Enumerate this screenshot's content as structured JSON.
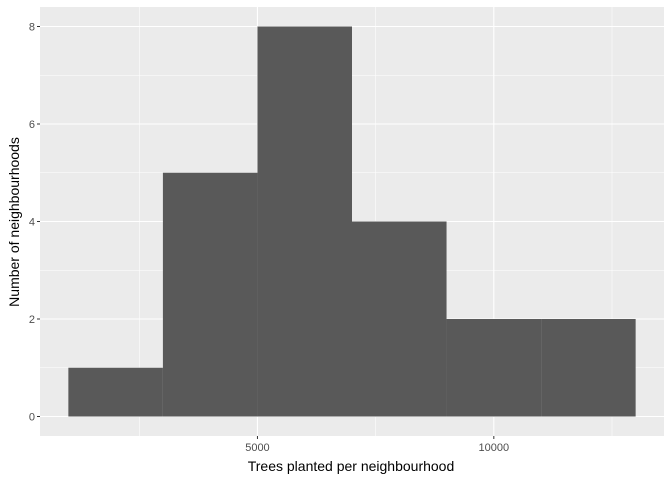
{
  "chart_data": {
    "type": "bar",
    "bins": [
      {
        "x0": 1000,
        "x1": 3000,
        "count": 1
      },
      {
        "x0": 3000,
        "x1": 5000,
        "count": 5
      },
      {
        "x0": 5000,
        "x1": 7000,
        "count": 8
      },
      {
        "x0": 7000,
        "x1": 9000,
        "count": 4
      },
      {
        "x0": 9000,
        "x1": 11000,
        "count": 2
      },
      {
        "x0": 11000,
        "x1": 13000,
        "count": 2
      }
    ],
    "xlabel": "Trees planted per neighbourhood",
    "ylabel": "Number of neighbourhoods",
    "x_ticks": [
      5000,
      10000
    ],
    "x_tick_labels": [
      "5000",
      "10000"
    ],
    "x_minor_ticks": [
      2500,
      7500,
      12500
    ],
    "y_ticks": [
      0,
      2,
      4,
      6,
      8
    ],
    "y_tick_labels": [
      "0",
      "2",
      "4",
      "6",
      "8"
    ],
    "y_minor_ticks": [
      1,
      3,
      5,
      7
    ],
    "xlim": [
      400,
      13600
    ],
    "ylim": [
      -0.4,
      8.4
    ],
    "grid": true,
    "colors": {
      "panel": "#ebebeb",
      "grid": "#ffffff",
      "bar": "#595959",
      "tick_text": "#4d4d4d",
      "tick_mark": "#333333"
    }
  }
}
